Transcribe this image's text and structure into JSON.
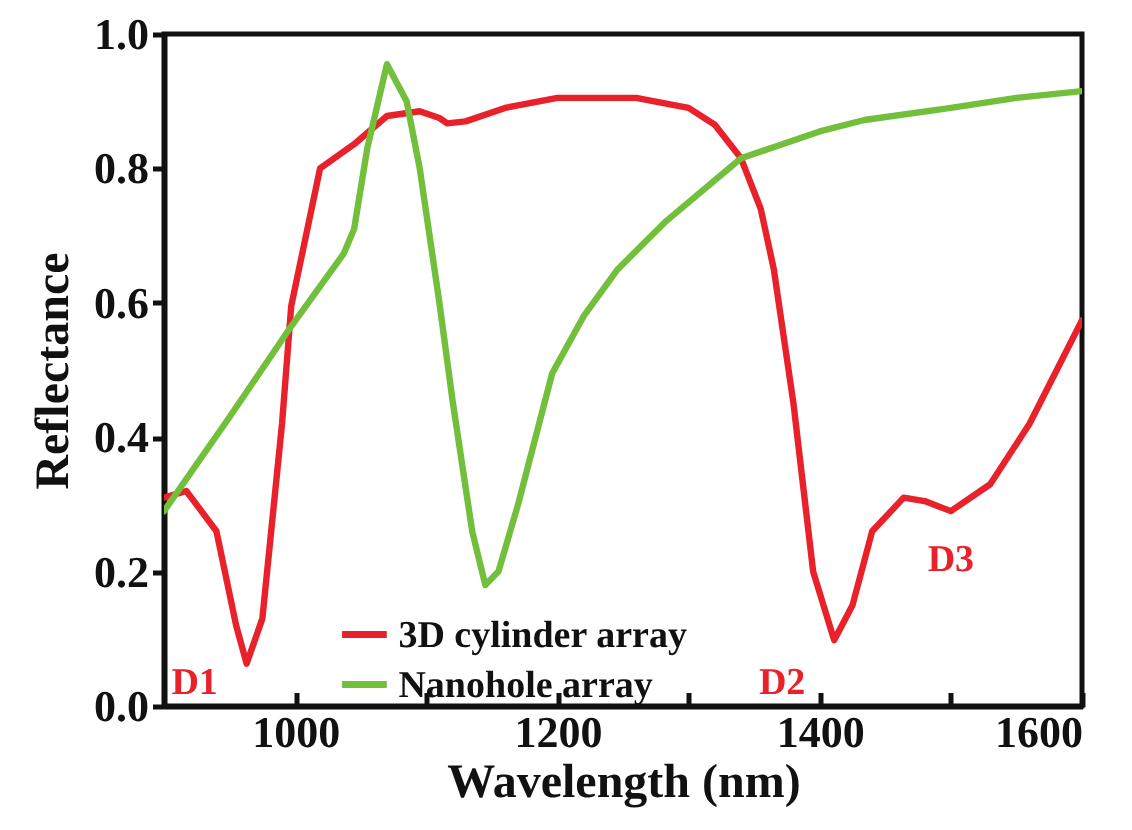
{
  "chart_data": {
    "type": "line",
    "xlabel": "Wavelength (nm)",
    "ylabel": "Reflectance",
    "xlim": [
      900,
      1600
    ],
    "ylim": [
      0,
      1
    ],
    "xticks": [
      1000,
      {
        "value": 1100,
        "label": null
      },
      1200,
      {
        "value": 1300,
        "label": null
      },
      1400,
      {
        "value": 1500,
        "label": null
      },
      1600
    ],
    "yticks": [
      {
        "value": 0,
        "label": "0.0"
      },
      0.2,
      0.4,
      0.6,
      0.8,
      {
        "value": 1,
        "label": "1.0"
      }
    ],
    "grid": false,
    "legend": "bottom",
    "line_style": "solid",
    "marker": "none",
    "series": [
      {
        "name": "3D cylinder array",
        "color": "#e8212a",
        "x": [
          900,
          917,
          940,
          955,
          963,
          975,
          990,
          997,
          1019,
          1045,
          1070,
          1095,
          1110,
          1116,
          1130,
          1160,
          1200,
          1260,
          1300,
          1320,
          1340,
          1355,
          1365,
          1380,
          1395,
          1411,
          1425,
          1440,
          1464,
          1480,
          1500,
          1530,
          1560,
          1600
        ],
        "values": [
          0.31,
          0.32,
          0.26,
          0.12,
          0.063,
          0.13,
          0.42,
          0.595,
          0.8,
          0.836,
          0.878,
          0.885,
          0.875,
          0.867,
          0.87,
          0.89,
          0.905,
          0.905,
          0.89,
          0.865,
          0.815,
          0.74,
          0.65,
          0.45,
          0.2,
          0.098,
          0.15,
          0.26,
          0.31,
          0.305,
          0.29,
          0.33,
          0.42,
          0.574
        ]
      },
      {
        "name": "Nanohole array",
        "color": "#72bf3c",
        "x": [
          900,
          950,
          997,
          1037,
          1045,
          1055,
          1070,
          1085,
          1095,
          1110,
          1120,
          1135,
          1145,
          1155,
          1170,
          1196,
          1220,
          1246,
          1282,
          1340,
          1400,
          1434,
          1500,
          1550,
          1600
        ],
        "values": [
          0.29,
          0.43,
          0.565,
          0.673,
          0.71,
          0.83,
          0.955,
          0.9,
          0.8,
          0.6,
          0.455,
          0.26,
          0.18,
          0.2,
          0.3,
          0.495,
          0.58,
          0.65,
          0.72,
          0.815,
          0.855,
          0.872,
          0.89,
          0.905,
          0.915
        ]
      }
    ],
    "annotations": [
      {
        "text": "D1",
        "x": 963,
        "y": 0.063
      },
      {
        "text": "D2",
        "x": 1411,
        "y": 0.098
      },
      {
        "text": "D3",
        "x": 1500,
        "y": 0.29
      }
    ]
  }
}
